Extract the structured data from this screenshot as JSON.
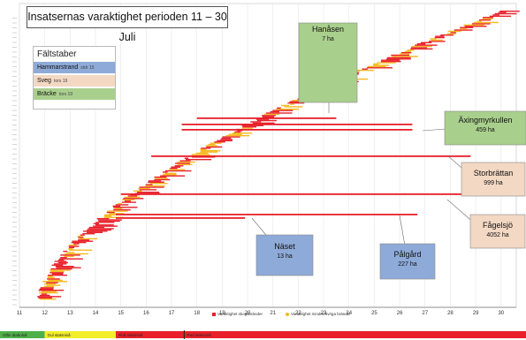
{
  "chart_data": {
    "type": "bar",
    "title": "Insatsernas varaktighet perioden 11 – 30 Juli",
    "x_ticks": [
      "11",
      "12",
      "13",
      "14",
      "15",
      "16",
      "17",
      "18",
      "19",
      "20",
      "21",
      "22",
      "23",
      "24",
      "25",
      "26",
      "27",
      "28",
      "29",
      "30"
    ],
    "xlim": [
      11,
      30.6
    ],
    "grid": true,
    "legend": {
      "title": "Fältstaber",
      "position": "top-left",
      "entries": [
        {
          "label": "Hammarstrand",
          "note": "stdr 15",
          "color": "#8eaad8"
        },
        {
          "label": "Sveg",
          "note": "tors 19",
          "color": "#f3d8c3"
        },
        {
          "label": "Bräcke",
          "note": "tors 19",
          "color": "#a9cf8d"
        }
      ]
    },
    "series": [
      {
        "name": "Varaktighet skogsbränder",
        "color": "#e8202a"
      },
      {
        "name": "Varaktighet mindre/övriga bränder",
        "color": "#f5b81f"
      }
    ],
    "annotations": [
      {
        "name": "Hanåsen",
        "area": "7 ha",
        "color": "#a9cf8d"
      },
      {
        "name": "Äxingmyrkullen",
        "area": "459 ha",
        "color": "#a9cf8d"
      },
      {
        "name": "Storbrättan",
        "area": "999 ha",
        "color": "#f3d8c3"
      },
      {
        "name": "Fågelsjö",
        "area": "4052 ha",
        "color": "#f3d8c3"
      },
      {
        "name": "Näset",
        "area": "13 ha",
        "color": "#8eaad8"
      },
      {
        "name": "Pålgård",
        "area": "227 ha",
        "color": "#8eaad8"
      }
    ],
    "long_fires": [
      {
        "start": 18.0,
        "end": 23.5
      },
      {
        "start": 17.4,
        "end": 26.5
      },
      {
        "start": 17.4,
        "end": 26.5
      },
      {
        "start": 16.2,
        "end": 28.8
      },
      {
        "start": 15.0,
        "end": 28.7
      },
      {
        "start": 14.8,
        "end": 26.7
      },
      {
        "start": 14.8,
        "end": 19.9
      }
    ],
    "phases": [
      {
        "label": "Olån diabolvå",
        "start": 11,
        "end": 12.0,
        "color": "#4fb049"
      },
      {
        "label": "Gul statsnivå",
        "start": 12.0,
        "end": 14.8,
        "color": "#f2ee2a"
      },
      {
        "label": "Röd statsnivå",
        "start": 14.8,
        "end": 17.5,
        "color": "#e8202a"
      },
      {
        "label": "Röd statsnivå",
        "start": 17.5,
        "end": 30.6,
        "color": "#e8202a"
      }
    ]
  }
}
